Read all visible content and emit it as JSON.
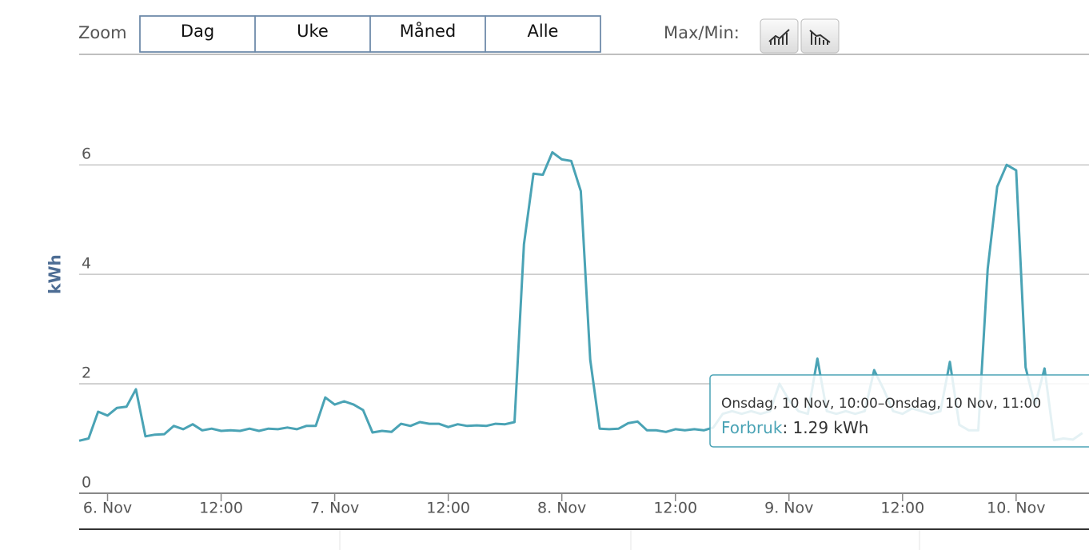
{
  "toolbar": {
    "zoom_label": "Zoom",
    "zoom_buttons": [
      "Dag",
      "Uke",
      "Måned",
      "Alle"
    ],
    "maxmin_label": "Max/Min:"
  },
  "chart_data": {
    "type": "line",
    "y_label": "kWh",
    "x": [
      -3,
      -2,
      -1,
      0,
      1,
      2,
      3,
      4,
      5,
      6,
      7,
      8,
      9,
      10,
      11,
      12,
      13,
      14,
      15,
      16,
      17,
      18,
      19,
      20,
      21,
      22,
      23,
      24,
      25,
      26,
      27,
      28,
      29,
      30,
      31,
      32,
      33,
      34,
      35,
      36,
      37,
      38,
      39,
      40,
      41,
      42,
      43,
      44,
      45,
      46,
      47,
      48,
      49,
      50,
      51,
      52,
      53,
      54,
      55,
      56,
      57,
      58,
      59,
      60,
      61,
      62,
      63,
      64,
      65,
      66,
      67,
      68,
      69,
      70,
      71,
      72,
      73,
      74,
      75,
      76,
      77,
      78,
      79,
      80,
      81,
      82,
      83,
      84,
      85,
      86,
      87,
      88,
      89,
      90,
      91,
      92,
      93,
      94,
      95,
      96,
      97,
      98,
      99,
      100,
      101,
      102,
      103
    ],
    "series": [
      {
        "name": "Forbruk",
        "color": "#4aa3b5",
        "values": [
          0.96,
          1.0,
          1.49,
          1.42,
          1.56,
          1.58,
          1.9,
          1.04,
          1.07,
          1.08,
          1.23,
          1.17,
          1.26,
          1.15,
          1.18,
          1.14,
          1.15,
          1.14,
          1.18,
          1.14,
          1.18,
          1.17,
          1.2,
          1.17,
          1.23,
          1.23,
          1.75,
          1.62,
          1.68,
          1.62,
          1.52,
          1.11,
          1.14,
          1.12,
          1.27,
          1.23,
          1.3,
          1.27,
          1.27,
          1.21,
          1.26,
          1.23,
          1.24,
          1.23,
          1.27,
          1.26,
          1.3,
          4.55,
          5.84,
          5.82,
          6.23,
          6.1,
          6.07,
          5.52,
          2.44,
          1.18,
          1.17,
          1.18,
          1.28,
          1.31,
          1.15,
          1.15,
          1.12,
          1.17,
          1.15,
          1.17,
          1.15,
          1.2,
          1.45,
          1.5,
          1.45,
          1.5,
          1.45,
          1.5,
          2.0,
          1.7,
          1.5,
          1.45,
          2.46,
          1.5,
          1.45,
          1.5,
          1.45,
          1.5,
          2.25,
          1.9,
          1.5,
          1.45,
          1.55,
          1.5,
          1.45,
          1.5,
          2.4,
          1.25,
          1.15,
          1.15,
          4.1,
          5.6,
          6.0,
          5.9,
          2.3,
          1.6,
          2.28,
          0.97,
          1.0,
          0.98,
          1.1
        ]
      }
    ],
    "xlim": [
      -3,
      103.7
    ],
    "xticks": [
      {
        "value": 0,
        "label": "6. Nov"
      },
      {
        "value": 12,
        "label": "12:00"
      },
      {
        "value": 24,
        "label": "7. Nov"
      },
      {
        "value": 36,
        "label": "12:00"
      },
      {
        "value": 48,
        "label": "8. Nov"
      },
      {
        "value": 60,
        "label": "12:00"
      },
      {
        "value": 72,
        "label": "9. Nov"
      },
      {
        "value": 84,
        "label": "12:00"
      },
      {
        "value": 96,
        "label": "10. Nov"
      }
    ],
    "ylim": [
      0,
      6.5
    ],
    "yticks": [
      0,
      2,
      4,
      6
    ],
    "grid": true
  },
  "tooltip": {
    "header": "Onsdag, 10 Nov, 10:00–Onsdag, 10 Nov, 11:00",
    "text": ": 1.29 kWh"
  }
}
